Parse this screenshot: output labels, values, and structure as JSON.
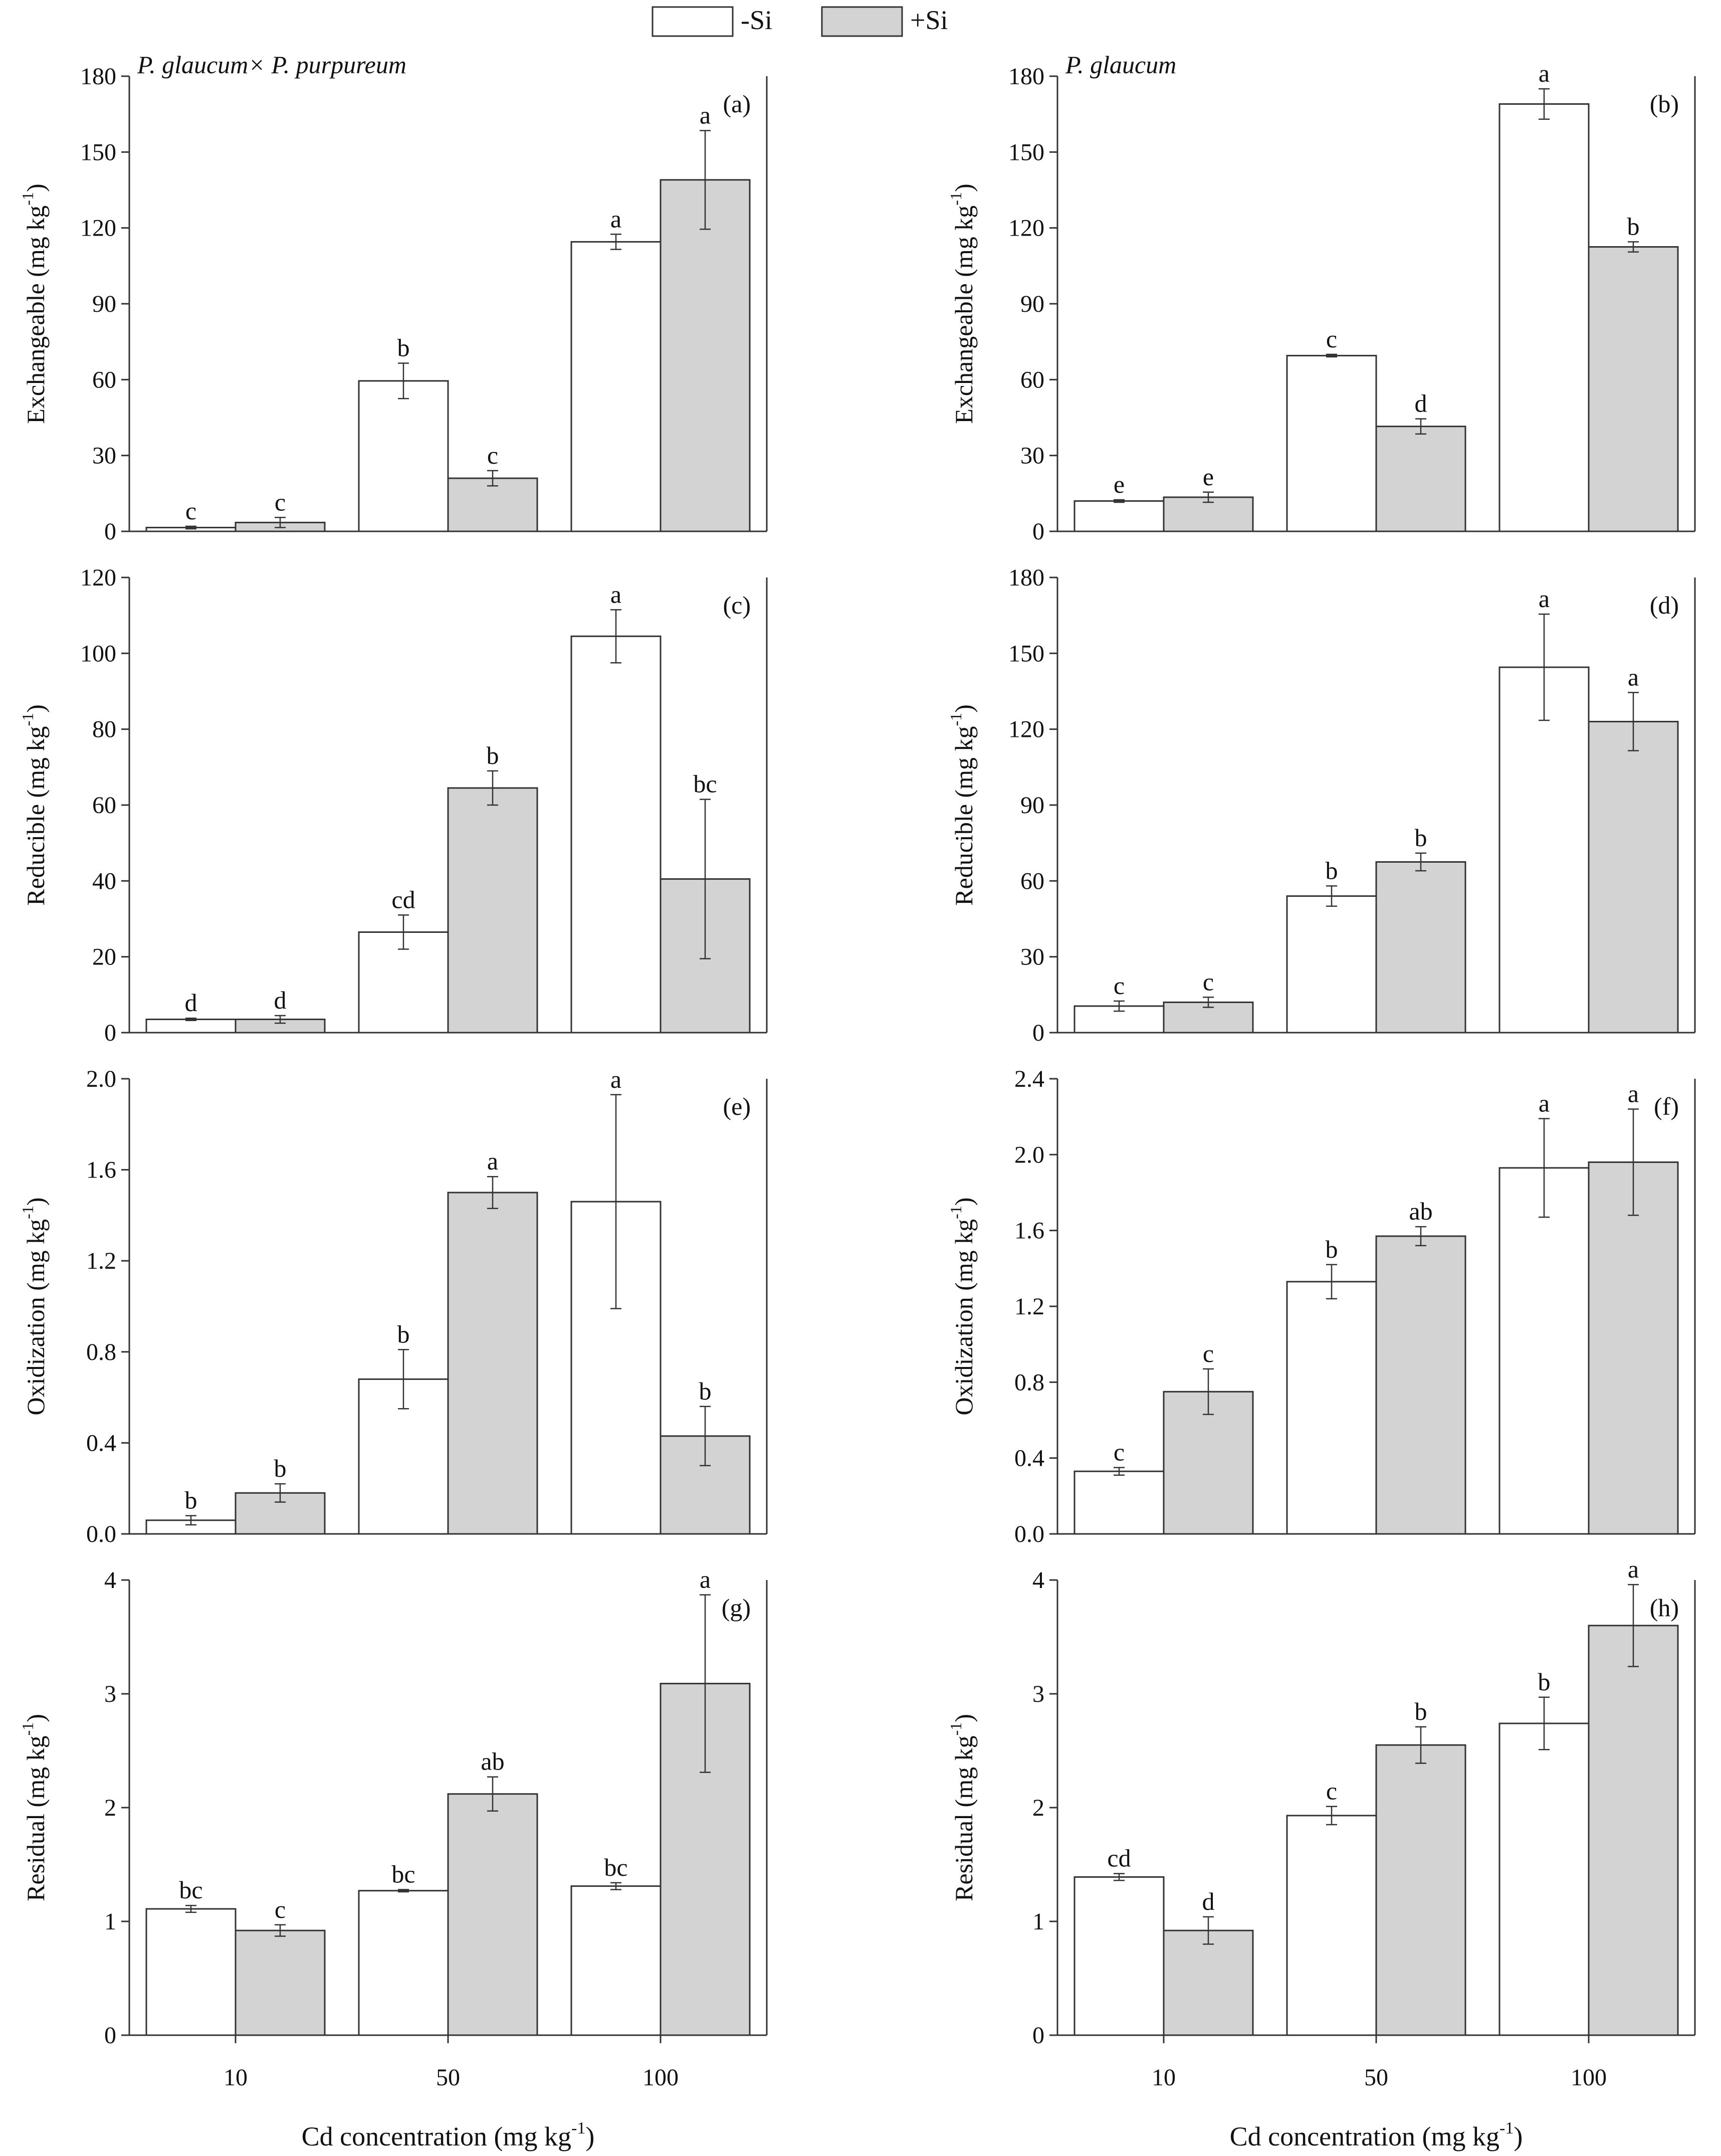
{
  "legend": {
    "items": [
      {
        "label": "-Si",
        "fill": "#ffffff"
      },
      {
        "label": "+Si",
        "fill": "#d3d3d3"
      }
    ]
  },
  "x_axis_label": "Cd concentration (mg kg",
  "x_axis_label_sup": "-1",
  "x_axis_label_close": ")",
  "colors": {
    "minus_si": "#ffffff",
    "plus_si": "#d3d3d3",
    "stroke": "#333333"
  },
  "chart_data": [
    {
      "id": "a",
      "type": "bar",
      "panel_label": "(a)",
      "species": "P. glaucum× P. purpureum",
      "ylabel": "Exchangeable (mg kg",
      "ylabel_sup": "-1",
      "ylabel_close": ")",
      "ylim": [
        0,
        180
      ],
      "yticks": [
        "0",
        "30",
        "60",
        "90",
        "120",
        "150",
        "180"
      ],
      "categories": [
        "10",
        "50",
        "100"
      ],
      "show_xticks": false,
      "series": [
        {
          "name": "-Si",
          "values": [
            1.5,
            59.5,
            114.5
          ],
          "errors": [
            0.5,
            7,
            3
          ],
          "letters": [
            "c",
            "b",
            "a"
          ]
        },
        {
          "name": "+Si",
          "values": [
            3.5,
            21,
            139
          ],
          "errors": [
            2,
            3,
            19.5
          ],
          "letters": [
            "c",
            "c",
            "a"
          ]
        }
      ]
    },
    {
      "id": "b",
      "type": "bar",
      "panel_label": "(b)",
      "species": "P. glaucum",
      "ylabel": "Exchangeable (mg kg",
      "ylabel_sup": "-1",
      "ylabel_close": ")",
      "ylim": [
        0,
        180
      ],
      "yticks": [
        "0",
        "30",
        "60",
        "90",
        "120",
        "150",
        "180"
      ],
      "categories": [
        "10",
        "50",
        "100"
      ],
      "show_xticks": false,
      "series": [
        {
          "name": "-Si",
          "values": [
            12,
            69.5,
            169
          ],
          "errors": [
            0.5,
            0.5,
            6
          ],
          "letters": [
            "e",
            "c",
            "a"
          ]
        },
        {
          "name": "+Si",
          "values": [
            13.5,
            41.5,
            112.5
          ],
          "errors": [
            2,
            3,
            2
          ],
          "letters": [
            "e",
            "d",
            "b"
          ]
        }
      ]
    },
    {
      "id": "c",
      "type": "bar",
      "panel_label": "(c)",
      "ylabel": "Reducible (mg kg",
      "ylabel_sup": "-1",
      "ylabel_close": ")",
      "ylim": [
        0,
        120
      ],
      "yticks": [
        "0",
        "20",
        "40",
        "60",
        "80",
        "100",
        "120"
      ],
      "categories": [
        "10",
        "50",
        "100"
      ],
      "show_xticks": false,
      "series": [
        {
          "name": "-Si",
          "values": [
            3.5,
            26.5,
            104.5
          ],
          "errors": [
            0.3,
            4.5,
            7
          ],
          "letters": [
            "d",
            "cd",
            "a"
          ]
        },
        {
          "name": "+Si",
          "values": [
            3.5,
            64.5,
            40.5
          ],
          "errors": [
            1,
            4.5,
            21
          ],
          "letters": [
            "d",
            "b",
            "bc"
          ]
        }
      ]
    },
    {
      "id": "d",
      "type": "bar",
      "panel_label": "(d)",
      "ylabel": "Reducible (mg kg",
      "ylabel_sup": "-1",
      "ylabel_close": ")",
      "ylim": [
        0,
        180
      ],
      "yticks": [
        "0",
        "30",
        "60",
        "90",
        "120",
        "150",
        "180"
      ],
      "categories": [
        "10",
        "50",
        "100"
      ],
      "show_xticks": false,
      "series": [
        {
          "name": "-Si",
          "values": [
            10.5,
            54,
            144.5
          ],
          "errors": [
            2,
            4,
            21
          ],
          "letters": [
            "c",
            "b",
            "a"
          ]
        },
        {
          "name": "+Si",
          "values": [
            12,
            67.5,
            123
          ],
          "errors": [
            2,
            3.5,
            11.5
          ],
          "letters": [
            "c",
            "b",
            "a"
          ]
        }
      ]
    },
    {
      "id": "e",
      "type": "bar",
      "panel_label": "(e)",
      "ylabel": "Oxidization (mg kg",
      "ylabel_sup": "-1",
      "ylabel_close": ")",
      "ylim": [
        0,
        2.0
      ],
      "yticks": [
        "0.0",
        "0.4",
        "0.8",
        "1.2",
        "1.6",
        "2.0"
      ],
      "categories": [
        "10",
        "50",
        "100"
      ],
      "show_xticks": false,
      "series": [
        {
          "name": "-Si",
          "values": [
            0.06,
            0.68,
            1.46
          ],
          "errors": [
            0.02,
            0.13,
            0.47
          ],
          "letters": [
            "b",
            "b",
            "a"
          ]
        },
        {
          "name": "+Si",
          "values": [
            0.18,
            1.5,
            0.43
          ],
          "errors": [
            0.04,
            0.07,
            0.13
          ],
          "letters": [
            "b",
            "a",
            "b"
          ]
        }
      ]
    },
    {
      "id": "f",
      "type": "bar",
      "panel_label": "(f)",
      "ylabel": "Oxidization (mg kg",
      "ylabel_sup": "-1",
      "ylabel_close": ")",
      "ylim": [
        0,
        2.4
      ],
      "yticks": [
        "0.0",
        "0.4",
        "0.8",
        "1.2",
        "1.6",
        "2.0",
        "2.4"
      ],
      "categories": [
        "10",
        "50",
        "100"
      ],
      "show_xticks": false,
      "series": [
        {
          "name": "-Si",
          "values": [
            0.33,
            1.33,
            1.93
          ],
          "errors": [
            0.02,
            0.09,
            0.26
          ],
          "letters": [
            "c",
            "b",
            "a"
          ]
        },
        {
          "name": "+Si",
          "values": [
            0.75,
            1.57,
            1.96
          ],
          "errors": [
            0.12,
            0.05,
            0.28
          ],
          "letters": [
            "c",
            "ab",
            "a"
          ]
        }
      ]
    },
    {
      "id": "g",
      "type": "bar",
      "panel_label": "(g)",
      "ylabel": "Residual (mg kg",
      "ylabel_sup": "-1",
      "ylabel_close": ")",
      "ylim": [
        0,
        4
      ],
      "yticks": [
        "0",
        "1",
        "2",
        "3",
        "4"
      ],
      "categories": [
        "10",
        "50",
        "100"
      ],
      "show_xticks": true,
      "series": [
        {
          "name": "-Si",
          "values": [
            1.11,
            1.27,
            1.31
          ],
          "errors": [
            0.03,
            0.01,
            0.03
          ],
          "letters": [
            "bc",
            "bc",
            "bc"
          ]
        },
        {
          "name": "+Si",
          "values": [
            0.92,
            2.12,
            3.09
          ],
          "errors": [
            0.05,
            0.15,
            0.78
          ],
          "letters": [
            "c",
            "ab",
            "a"
          ]
        }
      ]
    },
    {
      "id": "h",
      "type": "bar",
      "panel_label": "(h)",
      "ylabel": "Residual (mg kg",
      "ylabel_sup": "-1",
      "ylabel_close": ")",
      "ylim": [
        0,
        4
      ],
      "yticks": [
        "0",
        "1",
        "2",
        "3",
        "4"
      ],
      "categories": [
        "10",
        "50",
        "100"
      ],
      "show_xticks": true,
      "series": [
        {
          "name": "-Si",
          "values": [
            1.39,
            1.93,
            2.74
          ],
          "errors": [
            0.03,
            0.08,
            0.23
          ],
          "letters": [
            "cd",
            "c",
            "b"
          ]
        },
        {
          "name": "+Si",
          "values": [
            0.92,
            2.55,
            3.6
          ],
          "errors": [
            0.12,
            0.16,
            0.36
          ],
          "letters": [
            "d",
            "b",
            "a"
          ]
        }
      ]
    }
  ]
}
